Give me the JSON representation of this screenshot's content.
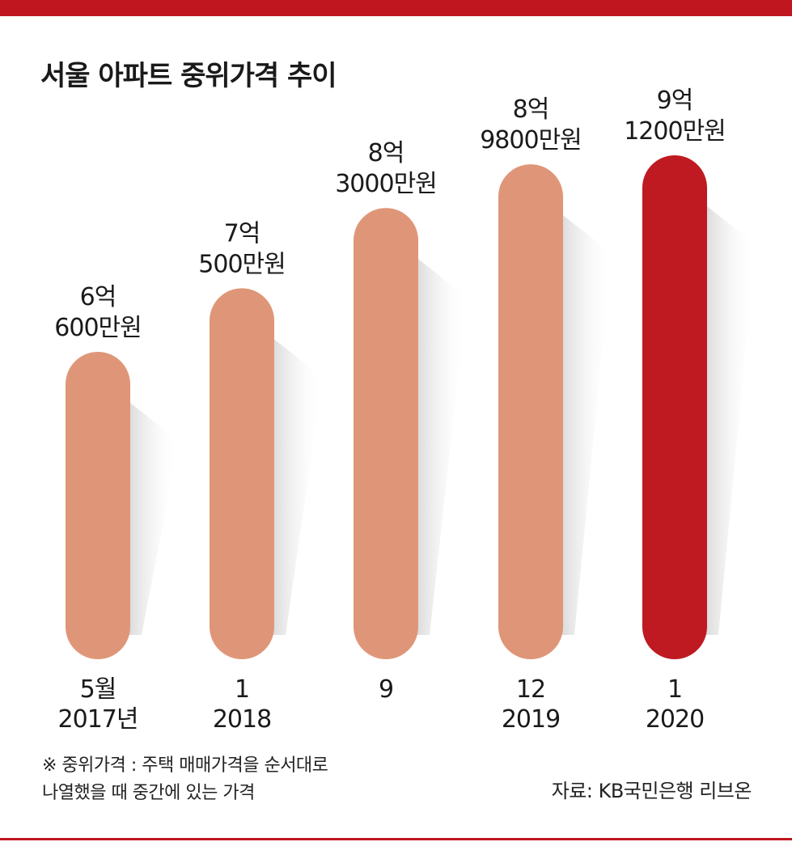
{
  "title": "서울 아파트 중위가격 추이",
  "note_line1": "※ 중위가격 : 주택 매매가격을 순서대로",
  "note_line2": "나열했을 때 중간에 있는 가격",
  "source": "자료: KB국민은행 리브온",
  "colors": {
    "accent": "#c0161f",
    "bar": "#df9678",
    "highlight": "#bf1a21"
  },
  "chart_data": {
    "type": "bar",
    "unit": "만원",
    "categories": [
      [
        "5월",
        "2017년"
      ],
      [
        "1",
        "2018"
      ],
      [
        "9",
        ""
      ],
      [
        "12",
        "2019"
      ],
      [
        "1",
        "2020"
      ]
    ],
    "values": [
      60600,
      70500,
      83000,
      89800,
      91200
    ],
    "value_labels": [
      [
        "6억",
        "600만원"
      ],
      [
        "7억",
        "500만원"
      ],
      [
        "8억",
        "3000만원"
      ],
      [
        "8억",
        "9800만원"
      ],
      [
        "9억",
        "1200만원"
      ]
    ],
    "highlight_index": 4
  }
}
